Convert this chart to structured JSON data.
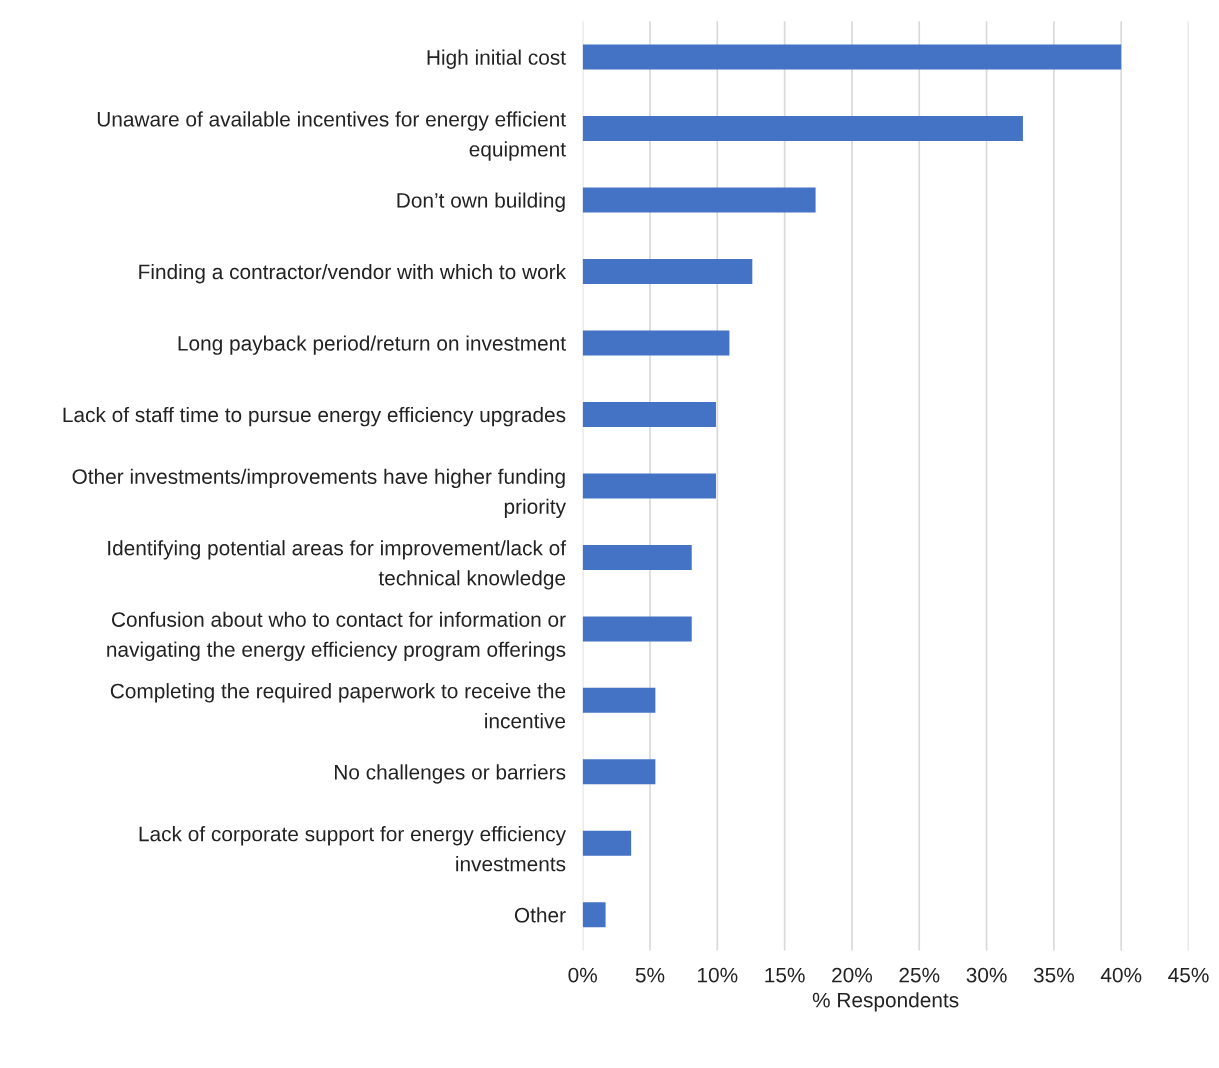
{
  "chart_data": {
    "type": "bar",
    "orientation": "horizontal",
    "xlabel": "% Respondents",
    "categories": [
      "High initial cost",
      "Unaware of available incentives for energy efficient\nequipment",
      "Don’t own building",
      "Finding a contractor/vendor with which to work",
      "Long payback period/return on investment",
      "Lack of staff time to pursue energy efficiency upgrades",
      "Other investments/improvements have higher funding\npriority",
      "Identifying potential areas for improvement/lack of\ntechnical knowledge",
      "Confusion about who to contact for information or\nnavigating the energy efficiency program offerings",
      "Completing the required paperwork to receive the\nincentive",
      "No challenges or barriers",
      "Lack of corporate support for energy efficiency\ninvestments",
      "Other"
    ],
    "values": [
      40,
      32.7,
      17.3,
      12.6,
      10.9,
      9.9,
      9.9,
      8.1,
      8.1,
      5.4,
      5.4,
      3.6,
      1.7
    ],
    "color": "#4472c4",
    "xlim": [
      0,
      45
    ],
    "xticks": [
      {
        "value": 0,
        "label": "0%"
      },
      {
        "value": 5,
        "label": "5%"
      },
      {
        "value": 10,
        "label": "10%"
      },
      {
        "value": 15,
        "label": "15%"
      },
      {
        "value": 20,
        "label": "20%"
      },
      {
        "value": 25,
        "label": "25%"
      },
      {
        "value": 30,
        "label": "30%"
      },
      {
        "value": 35,
        "label": "35%"
      },
      {
        "value": 40,
        "label": "40%"
      },
      {
        "value": 45,
        "label": "45%"
      }
    ],
    "grid": "x",
    "legend": false
  }
}
